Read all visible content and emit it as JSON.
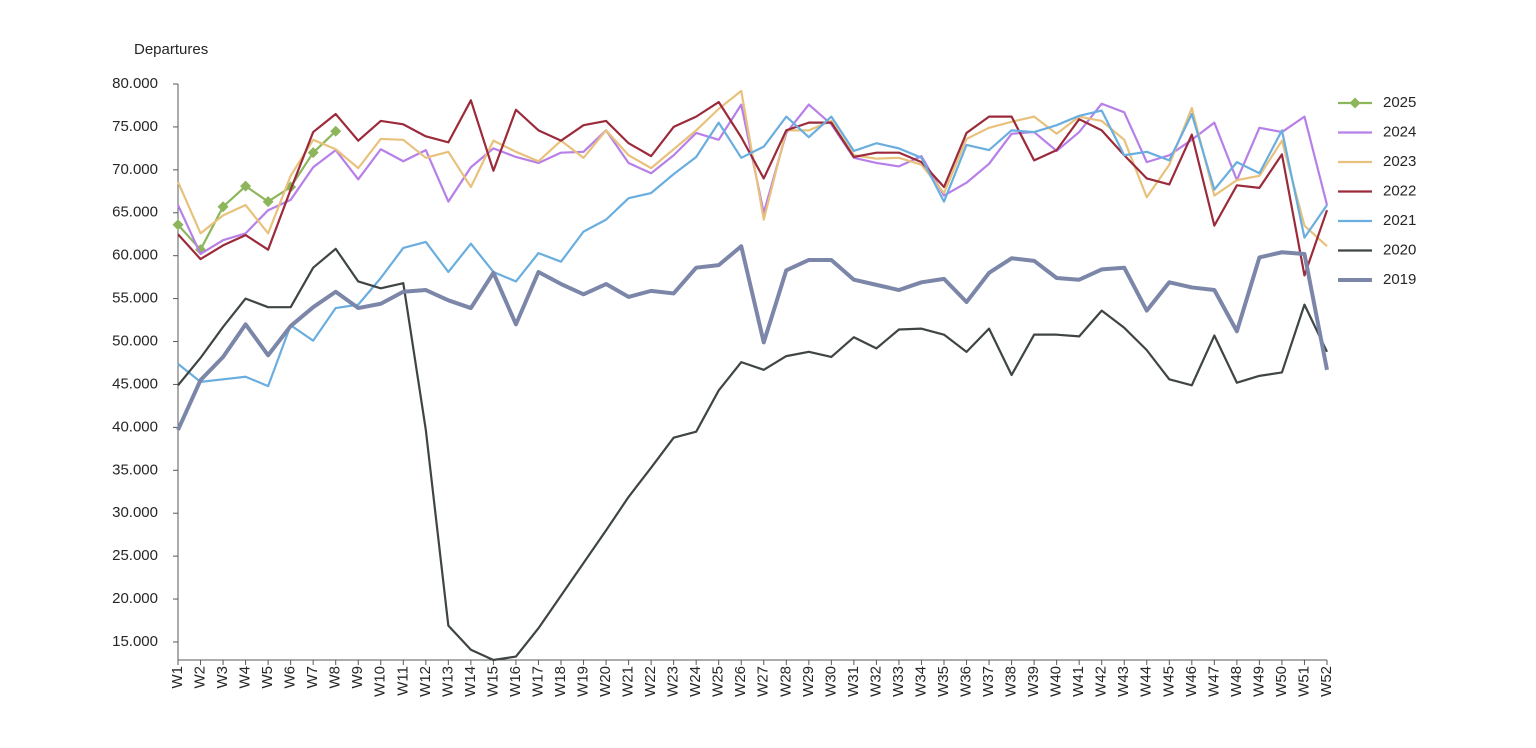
{
  "chart_data": {
    "type": "line",
    "y_axis_label": "Departures",
    "categories": [
      "W1",
      "W2",
      "W3",
      "W4",
      "W5",
      "W6",
      "W7",
      "W8",
      "W9",
      "W10",
      "W11",
      "W12",
      "W13",
      "W14",
      "W15",
      "W16",
      "W17",
      "W18",
      "W19",
      "W20",
      "W21",
      "W22",
      "W23",
      "W24",
      "W25",
      "W26",
      "W27",
      "W28",
      "W29",
      "W30",
      "W31",
      "W32",
      "W33",
      "W34",
      "W35",
      "W36",
      "W37",
      "W38",
      "W39",
      "W40",
      "W41",
      "W42",
      "W43",
      "W44",
      "W45",
      "W46",
      "W47",
      "W48",
      "W49",
      "W50",
      "W51",
      "W52"
    ],
    "ylim": [
      12900,
      80000
    ],
    "yticks": [
      {
        "value": 15000,
        "label": "15.000"
      },
      {
        "value": 20000,
        "label": "20.000"
      },
      {
        "value": 25000,
        "label": "25.000"
      },
      {
        "value": 30000,
        "label": "30.000"
      },
      {
        "value": 35000,
        "label": "35.000"
      },
      {
        "value": 40000,
        "label": "40.000"
      },
      {
        "value": 45000,
        "label": "45.000"
      },
      {
        "value": 50000,
        "label": "50.000"
      },
      {
        "value": 55000,
        "label": "55.000"
      },
      {
        "value": 60000,
        "label": "60.000"
      },
      {
        "value": 65000,
        "label": "65.000"
      },
      {
        "value": 70000,
        "label": "70.000"
      },
      {
        "value": 75000,
        "label": "75.000"
      },
      {
        "value": 80000,
        "label": "80.000"
      }
    ],
    "grid": false,
    "legend": "right",
    "series": [
      {
        "name": "2025",
        "color": "#8db55b",
        "marker": "diamond",
        "values": [
          63600,
          60700,
          65700,
          68100,
          66300,
          68000,
          72000,
          74500,
          null,
          null,
          null,
          null,
          null,
          null,
          null,
          null,
          null,
          null,
          null,
          null,
          null,
          null,
          null,
          null,
          null,
          null,
          null,
          null,
          null,
          null,
          null,
          null,
          null,
          null,
          null,
          null,
          null,
          null,
          null,
          null,
          null,
          null,
          null,
          null,
          null,
          null,
          null,
          null,
          null,
          null,
          null,
          null
        ]
      },
      {
        "name": "2024",
        "color": "#b77fe8",
        "values": [
          65900,
          60200,
          61800,
          62600,
          65300,
          66500,
          70300,
          72300,
          68900,
          72400,
          71000,
          72300,
          66300,
          70300,
          72500,
          71500,
          70800,
          72000,
          72100,
          74600,
          70800,
          69600,
          71700,
          74300,
          73500,
          77600,
          65000,
          74300,
          77600,
          75300,
          71400,
          70800,
          70400,
          71600,
          67000,
          68500,
          70700,
          74200,
          74400,
          72200,
          74400,
          77700,
          76700,
          70900,
          71700,
          73500,
          75500,
          68800,
          74900,
          74400,
          76200,
          65900
        ]
      },
      {
        "name": "2023",
        "color": "#e8c27c",
        "values": [
          68600,
          62600,
          64700,
          65900,
          62600,
          69300,
          73500,
          72400,
          70200,
          73600,
          73500,
          71400,
          72100,
          68000,
          73400,
          72100,
          71000,
          73400,
          71400,
          74600,
          71700,
          70200,
          72400,
          74600,
          77100,
          79200,
          64200,
          74600,
          74600,
          75700,
          71700,
          71300,
          71400,
          70600,
          67300,
          73600,
          74900,
          75600,
          76200,
          74200,
          76200,
          75700,
          73500,
          66800,
          70600,
          77200,
          67000,
          68800,
          69300,
          73400,
          63500,
          61100
        ]
      },
      {
        "name": "2022",
        "color": "#9b2b3b",
        "values": [
          62500,
          59600,
          61200,
          62400,
          60700,
          67700,
          74400,
          76500,
          73400,
          75700,
          75300,
          73900,
          73200,
          78100,
          69900,
          77000,
          74600,
          73400,
          75200,
          75700,
          73100,
          71600,
          75000,
          76200,
          77900,
          73800,
          69000,
          74600,
          75500,
          75500,
          71500,
          72000,
          72000,
          70900,
          68000,
          74300,
          76200,
          76200,
          71100,
          72300,
          75900,
          74600,
          71700,
          69000,
          68300,
          74100,
          63500,
          68200,
          67900,
          71800,
          57700,
          65300
        ]
      },
      {
        "name": "2021",
        "color": "#6aaee0",
        "values": [
          47400,
          45300,
          45600,
          45900,
          44800,
          51900,
          50100,
          53900,
          54300,
          57400,
          60900,
          61600,
          58100,
          61400,
          58100,
          57000,
          60300,
          59300,
          62800,
          64200,
          66700,
          67300,
          69500,
          71500,
          75500,
          71400,
          72700,
          76200,
          73800,
          76200,
          72200,
          73100,
          72500,
          71400,
          66300,
          72900,
          72300,
          74600,
          74400,
          75200,
          76300,
          76900,
          71700,
          72100,
          71100,
          76500,
          67700,
          70900,
          69600,
          74600,
          62100,
          65900
        ]
      },
      {
        "name": "2020",
        "color": "#3e4544",
        "values": [
          44900,
          48100,
          51700,
          55000,
          54000,
          54000,
          58600,
          60800,
          57000,
          56200,
          56800,
          39700,
          16900,
          14100,
          12900,
          13300,
          16600,
          20400,
          24200,
          28000,
          31900,
          35300,
          38800,
          39500,
          44300,
          47600,
          46700,
          48300,
          48800,
          48200,
          50500,
          49200,
          51400,
          51500,
          50800,
          48800,
          51500,
          46100,
          50800,
          50800,
          50600,
          53600,
          51600,
          49000,
          45600,
          44900,
          50700,
          45200,
          46000,
          46400,
          54300,
          48800
        ]
      },
      {
        "name": "2019",
        "color": "#7b86a8",
        "line_width": 4,
        "values": [
          39700,
          45500,
          48200,
          52000,
          48400,
          51800,
          54000,
          55800,
          53900,
          54400,
          55800,
          56000,
          54800,
          53900,
          58000,
          52000,
          58100,
          56700,
          55500,
          56700,
          55200,
          55900,
          55600,
          58600,
          58900,
          61100,
          49900,
          58300,
          59500,
          59500,
          57200,
          56600,
          56000,
          56900,
          57300,
          54600,
          58000,
          59700,
          59400,
          57400,
          57200,
          58400,
          58600,
          53600,
          56900,
          56300,
          56000,
          51200,
          59800,
          60400,
          60200,
          46700
        ]
      }
    ]
  }
}
